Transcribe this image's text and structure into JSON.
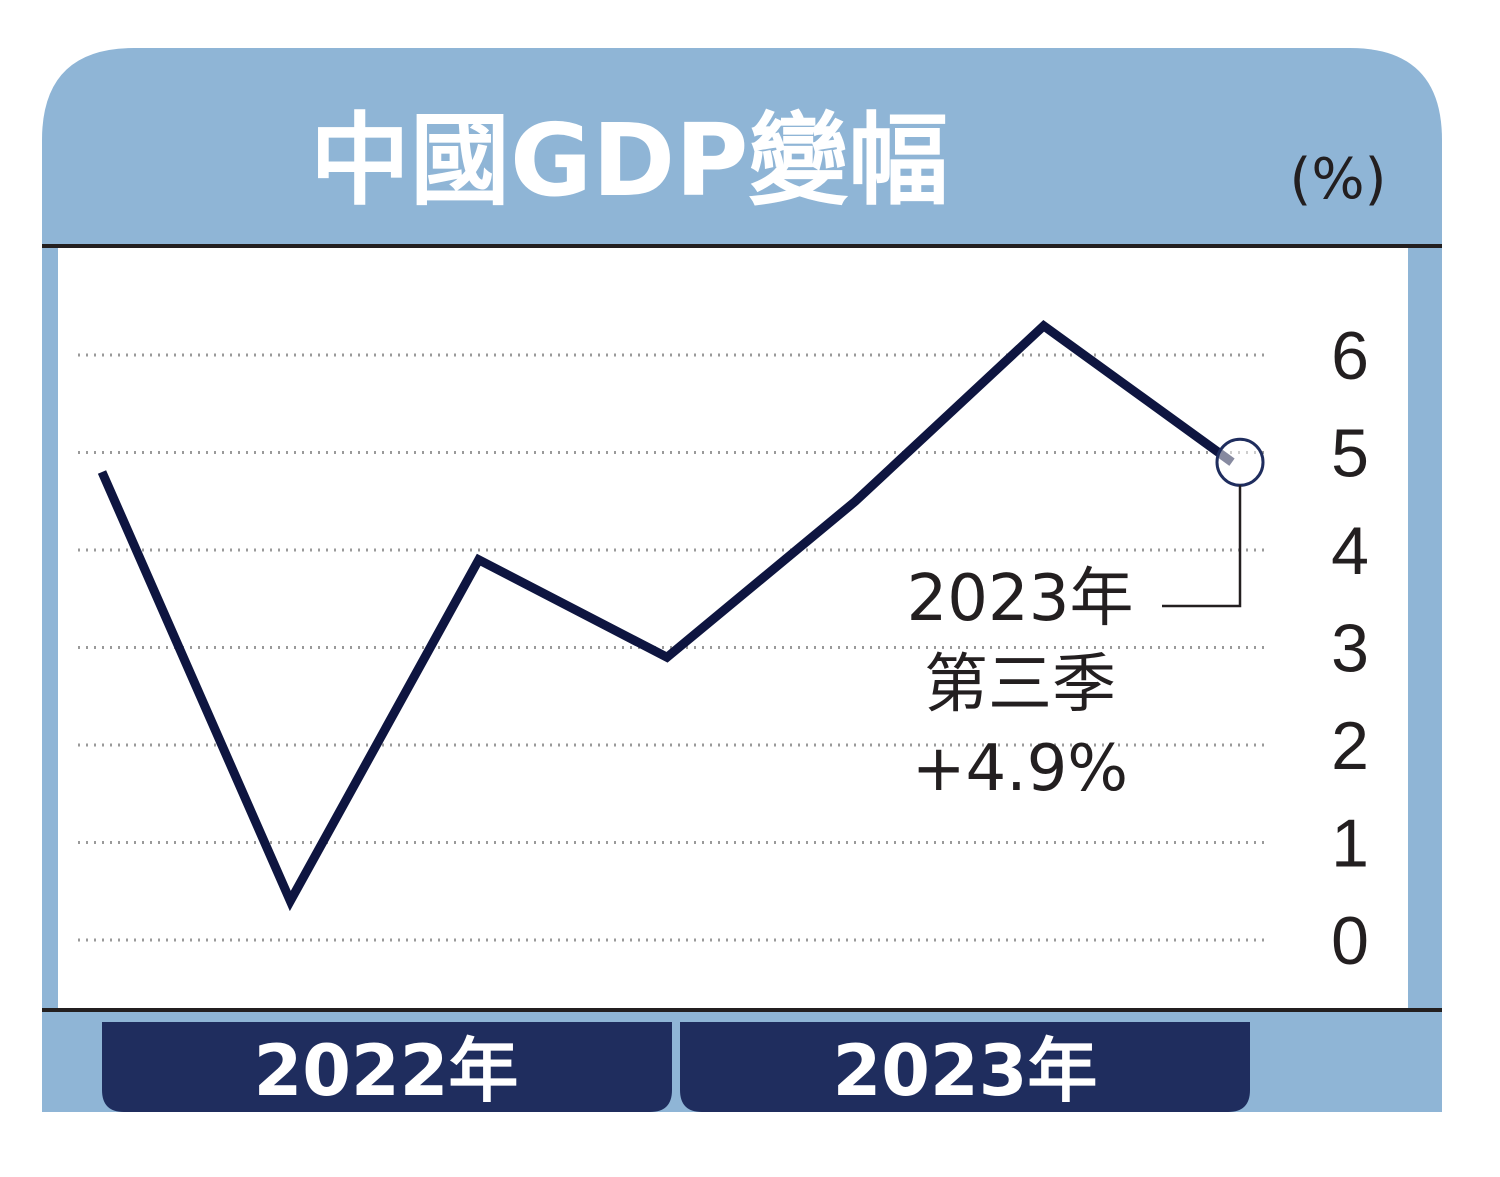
{
  "title": "中國GDP變幅",
  "unit": "(%)",
  "colors": {
    "frame": "#8fb5d6",
    "line": "#0e1540",
    "year_bar": "#1f2d5e",
    "grid": "#9a9a9a"
  },
  "chart_data": {
    "type": "line",
    "title": "中國GDP變幅",
    "ylabel": "(%)",
    "ylim": [
      0,
      6
    ],
    "yticks": [
      "0",
      "1",
      "2",
      "3",
      "4",
      "5",
      "6"
    ],
    "year_groups": [
      "2022年",
      "2023年"
    ],
    "series": [
      {
        "values": [
          4.8,
          0.4,
          3.9,
          2.9,
          4.5,
          6.3,
          4.9
        ]
      }
    ],
    "annotation": {
      "lines": [
        "2023年",
        "第三季",
        "+4.9%"
      ],
      "point_index": 6
    },
    "grid": true
  }
}
